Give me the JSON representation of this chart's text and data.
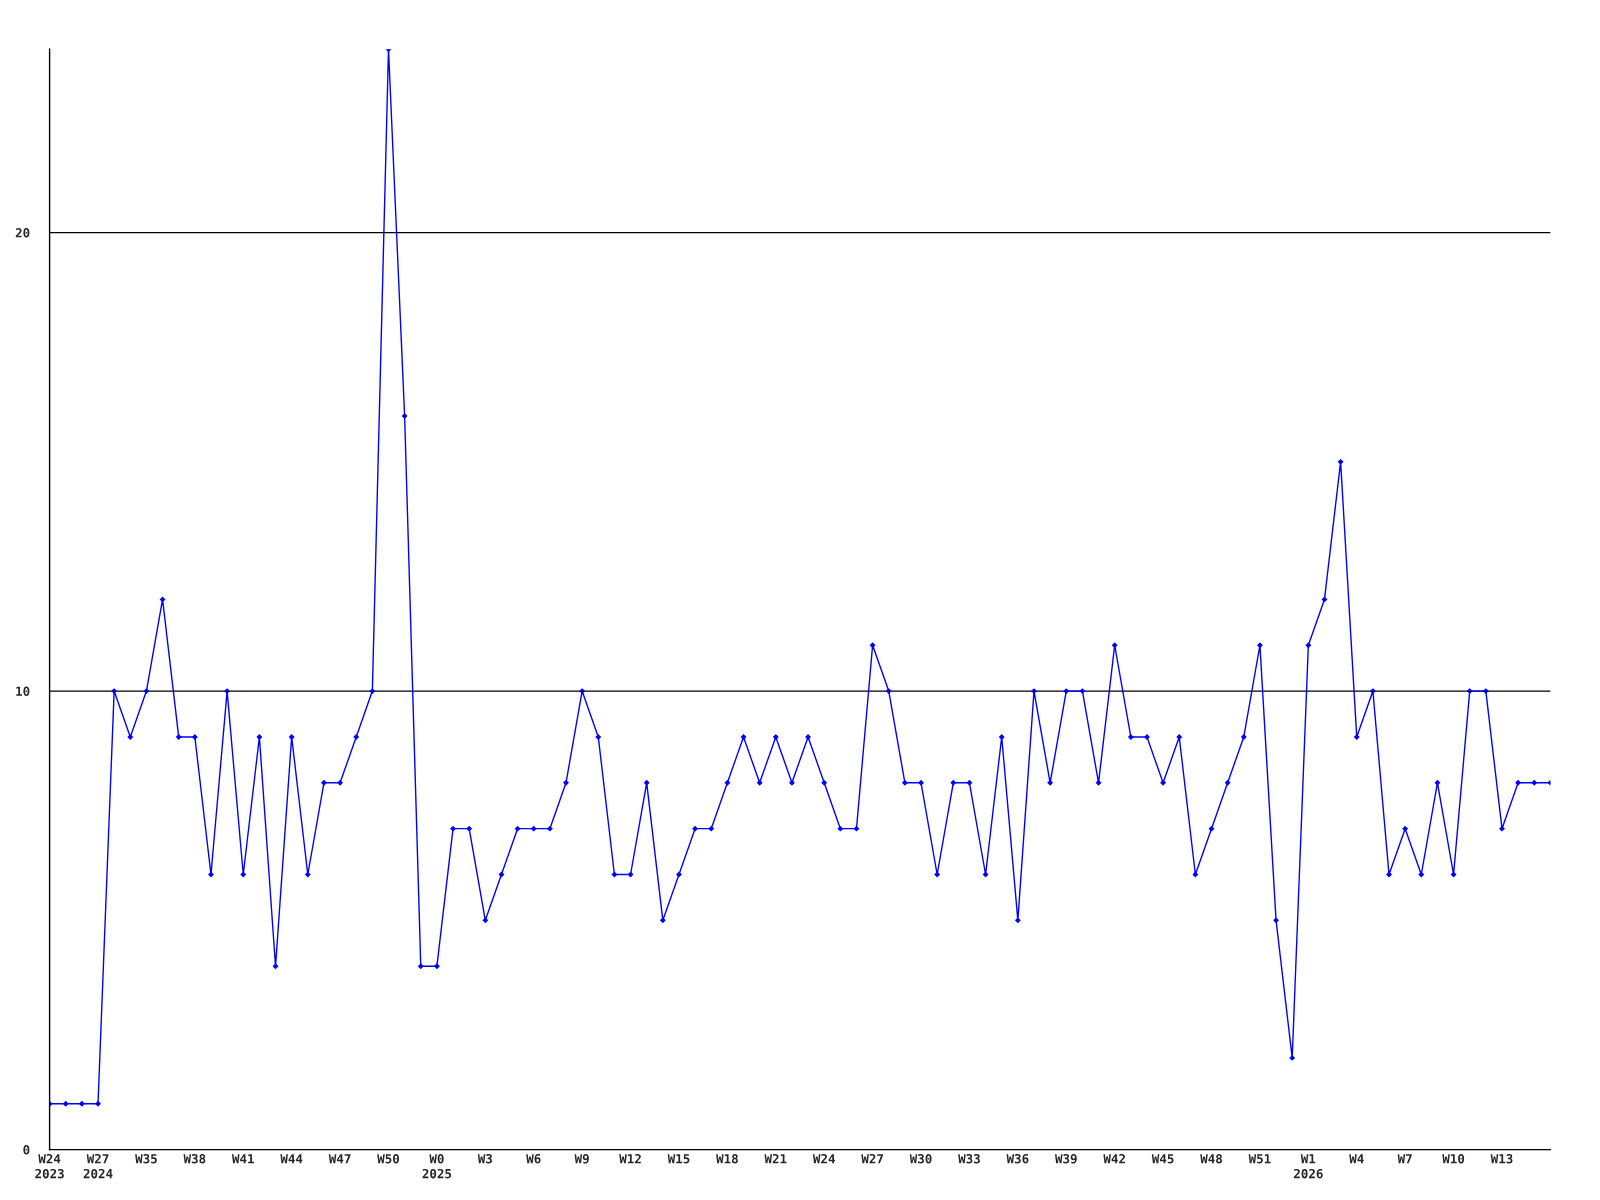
{
  "chart_data": {
    "type": "line",
    "categories": [
      "W24\n2023",
      null,
      null,
      "W27\n2024",
      null,
      null,
      "W35",
      null,
      null,
      "W38",
      null,
      null,
      "W41",
      null,
      null,
      "W44",
      null,
      null,
      "W47",
      null,
      null,
      "W50",
      null,
      null,
      "W0\n2025",
      null,
      null,
      "W3",
      null,
      null,
      "W6",
      null,
      null,
      "W9",
      null,
      null,
      "W12",
      null,
      null,
      "W15",
      null,
      null,
      "W18",
      null,
      null,
      "W21",
      null,
      null,
      "W24",
      null,
      null,
      "W27",
      null,
      null,
      "W30",
      null,
      null,
      "W33",
      null,
      null,
      "W36",
      null,
      null,
      "W39",
      null,
      null,
      "W42",
      null,
      null,
      "W45",
      null,
      null,
      "W48",
      null,
      null,
      "W51",
      null,
      null,
      "W1\n2026",
      null,
      null,
      "W4",
      null,
      null,
      "W7",
      null,
      null,
      "W10",
      null,
      null,
      "W13",
      null,
      null,
      null
    ],
    "series": [
      {
        "color": "#0000ff",
        "values": [
          1,
          1,
          1,
          1,
          10,
          9,
          10,
          12,
          9,
          9,
          6,
          10,
          6,
          9,
          4,
          9,
          6,
          8,
          8,
          9,
          10,
          24,
          16,
          4,
          4,
          7,
          7,
          5,
          6,
          7,
          7,
          7,
          8,
          10,
          9,
          6,
          6,
          8,
          5,
          6,
          7,
          7,
          8,
          9,
          8,
          9,
          8,
          9,
          8,
          7,
          7,
          11,
          10,
          8,
          8,
          6,
          8,
          8,
          6,
          9,
          5,
          10,
          8,
          10,
          10,
          8,
          11,
          9,
          9,
          8,
          9,
          6,
          7,
          8,
          9,
          11,
          5,
          2,
          11,
          12,
          15,
          9,
          10,
          6,
          7,
          6,
          8,
          6,
          10,
          10,
          7,
          8,
          8,
          8
        ]
      }
    ],
    "ylim": [
      0,
      24
    ],
    "yticks": [
      0,
      10,
      20
    ],
    "grid": "y",
    "marker": "diamond",
    "line_style": "solid"
  }
}
